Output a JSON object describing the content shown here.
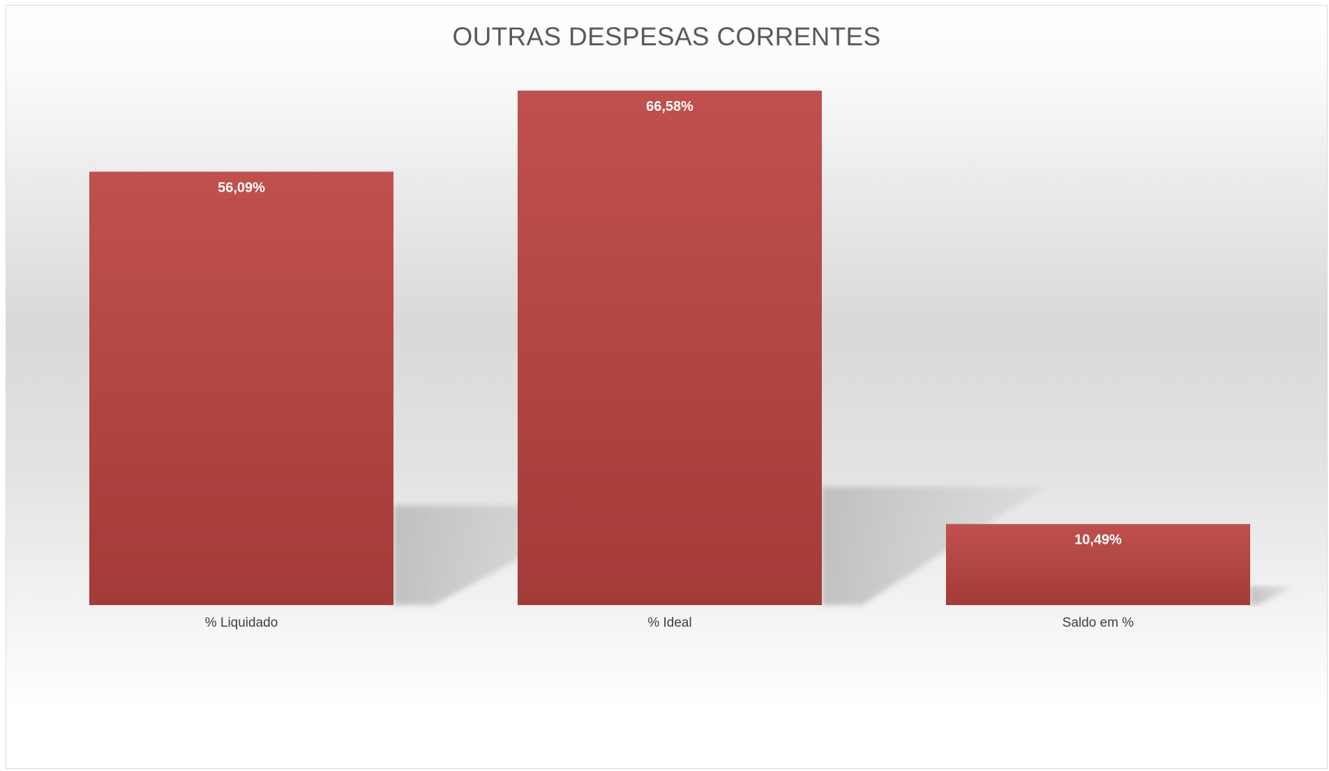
{
  "chart_data": {
    "type": "bar",
    "title": "OUTRAS DESPESAS CORRENTES",
    "xlabel": "",
    "ylabel": "",
    "categories": [
      "% Liquidado",
      "% Ideal",
      "Saldo em %"
    ],
    "values": [
      56.09,
      66.58,
      10.49
    ],
    "data_labels": [
      "56,09%",
      "66,58%",
      "10,49%"
    ],
    "ylim": [
      0,
      70
    ],
    "grid": false,
    "legend": "none",
    "bar_color": "#b5403e",
    "bar_color_top": "#c0504d",
    "bar_color_bottom": "#a33b38",
    "label_color": "#ffffff"
  }
}
